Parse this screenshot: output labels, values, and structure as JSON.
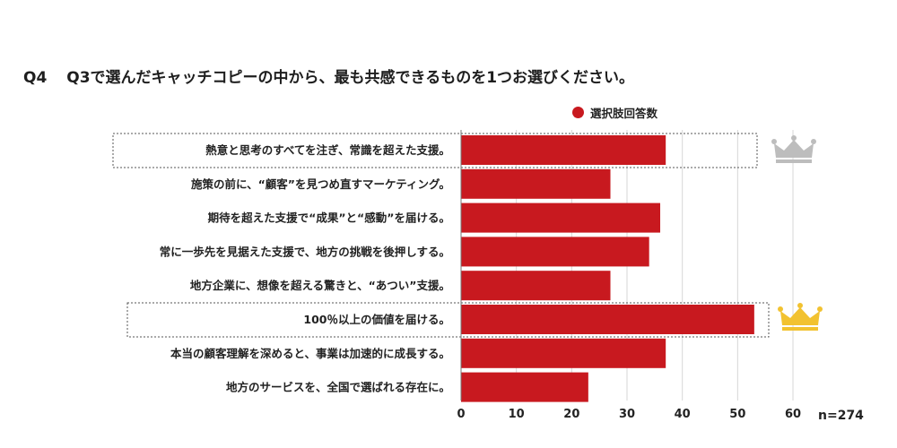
{
  "question": {
    "number": "Q4",
    "text": "Q3で選んだキャッチコピーの中から、最も共感できるものを1つお選びください。"
  },
  "legend": {
    "label": "選択肢回答数"
  },
  "sample_size": "n=274",
  "colors": {
    "bar": "#c8191f",
    "grid": "#d6d6d6",
    "silver_crown": "#bdbdbd",
    "gold_crown": "#f2c230"
  },
  "icons": {
    "first_place": "gold-crown-icon",
    "second_place": "silver-crown-icon"
  },
  "chart_data": {
    "type": "bar",
    "orientation": "horizontal",
    "categories": [
      "熱意と思考のすべてを注ぎ、常識を超えた支援。",
      "施策の前に、“顧客”を見つめ直すマーケティング。",
      "期待を超えた支援で“成果”と“感動”を届ける。",
      "常に一歩先を見据えた支援で、地方の挑戦を後押しする。",
      "地方企業に、想像を超える驚きと、“あつい”支援。",
      "100％以上の価値を届ける。",
      "本当の顧客理解を深めると、事業は加速的に成長する。",
      "地方のサービスを、全国で選ばれる存在に。"
    ],
    "series": [
      {
        "name": "選択肢回答数",
        "values": [
          37,
          27,
          36,
          34,
          27,
          53,
          37,
          23
        ]
      }
    ],
    "xlim": [
      0,
      60
    ],
    "xticks": [
      "0",
      "10",
      "20",
      "30",
      "40",
      "50",
      "60"
    ],
    "highlight": {
      "first": 5,
      "second": 0
    },
    "grid": true,
    "legend_position": "top-right"
  }
}
